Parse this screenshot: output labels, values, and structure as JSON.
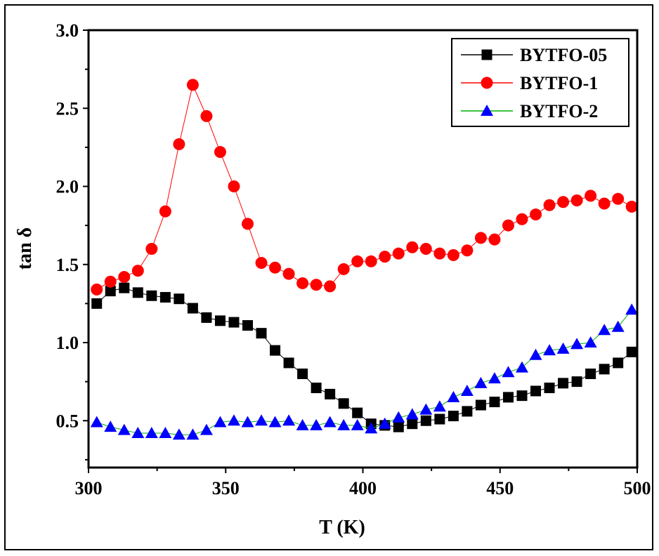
{
  "chart_data": {
    "type": "line",
    "xlabel": "T (K)",
    "ylabel": "tan δ",
    "xlim": [
      300,
      500
    ],
    "ylim": [
      0.2,
      3.0
    ],
    "xticks": [
      "300",
      "350",
      "400",
      "450",
      "500"
    ],
    "yticks": [
      "0.5",
      "1.0",
      "1.5",
      "2.0",
      "2.5",
      "3.0"
    ],
    "grid": false,
    "legend_position": "top-right",
    "x": [
      303,
      308,
      313,
      318,
      323,
      328,
      333,
      338,
      343,
      348,
      353,
      358,
      363,
      368,
      373,
      378,
      383,
      388,
      393,
      398,
      403,
      408,
      413,
      418,
      423,
      428,
      433,
      438,
      443,
      448,
      453,
      458,
      463,
      468,
      473,
      478,
      483,
      488,
      493,
      498
    ],
    "series": [
      {
        "name": "BYTFO-05",
        "color": "#000000",
        "marker": "square",
        "values": [
          1.25,
          1.33,
          1.35,
          1.32,
          1.3,
          1.29,
          1.28,
          1.22,
          1.16,
          1.14,
          1.13,
          1.11,
          1.06,
          0.95,
          0.87,
          0.8,
          0.71,
          0.67,
          0.61,
          0.55,
          0.48,
          0.47,
          0.46,
          0.48,
          0.5,
          0.51,
          0.53,
          0.56,
          0.6,
          0.62,
          0.65,
          0.66,
          0.69,
          0.71,
          0.74,
          0.75,
          0.8,
          0.83,
          0.87,
          0.94
        ]
      },
      {
        "name": "BYTFO-1",
        "color": "#ff0000",
        "marker": "circle",
        "values": [
          1.34,
          1.39,
          1.42,
          1.46,
          1.6,
          1.84,
          2.27,
          2.65,
          2.45,
          2.22,
          2.0,
          1.76,
          1.51,
          1.48,
          1.44,
          1.38,
          1.37,
          1.36,
          1.47,
          1.52,
          1.52,
          1.55,
          1.57,
          1.61,
          1.6,
          1.57,
          1.56,
          1.59,
          1.67,
          1.66,
          1.75,
          1.79,
          1.82,
          1.88,
          1.9,
          1.91,
          1.94,
          1.89,
          1.92,
          1.87
        ]
      },
      {
        "name": "BYTFO-2",
        "color": "#0000ff",
        "line_color": "#00b000",
        "marker": "triangle",
        "values": [
          0.49,
          0.46,
          0.44,
          0.42,
          0.42,
          0.42,
          0.41,
          0.41,
          0.44,
          0.49,
          0.5,
          0.49,
          0.5,
          0.49,
          0.5,
          0.47,
          0.47,
          0.49,
          0.47,
          0.47,
          0.45,
          0.48,
          0.52,
          0.54,
          0.57,
          0.59,
          0.65,
          0.69,
          0.74,
          0.77,
          0.81,
          0.84,
          0.92,
          0.95,
          0.96,
          0.99,
          1.0,
          1.08,
          1.1,
          1.21
        ]
      }
    ]
  }
}
